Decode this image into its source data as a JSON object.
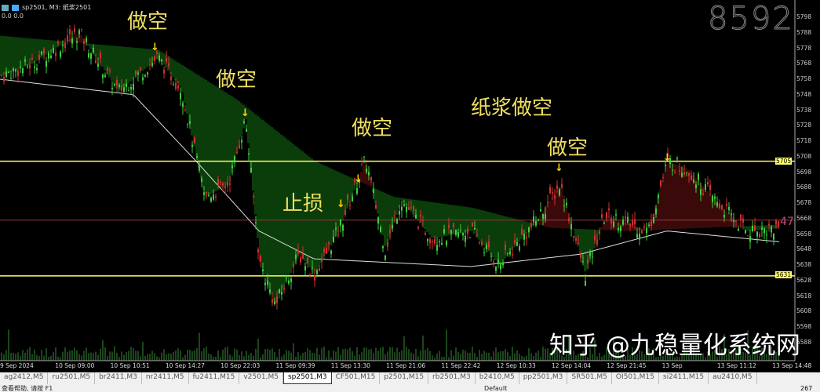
{
  "header": {
    "title": "sp2501, M3: 纸浆2501",
    "values": "0.0 0.0"
  },
  "watermark": "8592",
  "annotations": [
    {
      "text": "做空"
    },
    {
      "text": "做空"
    },
    {
      "text": "止损"
    },
    {
      "text": "做空"
    },
    {
      "text": "纸浆做空"
    },
    {
      "text": "做空"
    }
  ],
  "price_axis": [
    "5798",
    "5788",
    "5778",
    "5768",
    "5758",
    "5748",
    "5738",
    "5728",
    "5718",
    "5708",
    "5698",
    "5688",
    "5678",
    "5668",
    "5658",
    "5648",
    "5638",
    "5628",
    "5618",
    "5608",
    "5598",
    "5588"
  ],
  "levels": {
    "upper": "5705",
    "lower": "5631",
    "current_tag": "47"
  },
  "time_axis": [
    "9 Sep 2024",
    "10 Sep 09:00",
    "10 Sep 10:51",
    "10 Sep 14:27",
    "10 Sep 22:03",
    "11 Sep 09:39",
    "11 Sep 13:30",
    "11 Sep 21:06",
    "11 Sep 22:42",
    "12 Sep 10:33",
    "12 Sep 14:04",
    "12 Sep 21:45",
    "13 Sep",
    "13 Sep 11:12",
    "13 Sep 14:48"
  ],
  "credit": "知乎 @九稳量化系统网",
  "tabs": [
    "ag2412,M5",
    "ru2501,M5",
    "br2411,M3",
    "nr2411,M5",
    "fu2411,M15",
    "v2501,M5",
    "sp2501,M3",
    "CF501,M15",
    "p2501,M15",
    "rb2501,M3",
    "b2410,M5",
    "pp2501,M3",
    "SR501,M5",
    "OI501,M15",
    "si2411,M15",
    "au2410,M5"
  ],
  "active_tab": "sp2501,M3",
  "status": {
    "help": "查看帮助, 请按 F1",
    "profile": "Default",
    "conn": "267"
  },
  "colors": {
    "bull": "#3ecf3e",
    "bear": "#d03030",
    "cloud": "#0b3d0b",
    "cloud_red": "#3a0a0a",
    "level": "#ffff66",
    "current": "#a03040"
  }
}
